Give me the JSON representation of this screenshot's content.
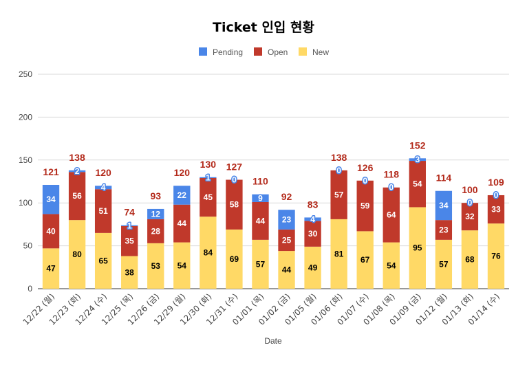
{
  "chart_data": {
    "type": "bar",
    "stacked": true,
    "title": "Ticket 인입 현황",
    "xlabel": "Date",
    "ylabel": "",
    "ylim": [
      0,
      250
    ],
    "yticks": [
      0,
      50,
      100,
      150,
      200,
      250
    ],
    "grid": true,
    "legend_position": "top",
    "categories": [
      "12/22 (월)",
      "12/23 (화)",
      "12/24 (수)",
      "12/25 (목)",
      "12/26 (금)",
      "12/29 (월)",
      "12/30 (화)",
      "12/31 (수)",
      "01/01 (목)",
      "01/02 (금)",
      "01/05 (월)",
      "01/06 (화)",
      "01/07 (수)",
      "01/08 (목)",
      "01/09 (금)",
      "01/12 (월)",
      "01/13 (화)",
      "01/14 (수)"
    ],
    "series": [
      {
        "name": "New",
        "color": "#ffd966",
        "label_color": "#000000",
        "values": [
          47,
          80,
          65,
          38,
          53,
          54,
          84,
          69,
          57,
          44,
          49,
          81,
          67,
          54,
          95,
          57,
          68,
          76
        ]
      },
      {
        "name": "Open",
        "color": "#c0392b",
        "label_color": "#ffffff",
        "values": [
          40,
          56,
          51,
          35,
          28,
          44,
          45,
          58,
          44,
          25,
          30,
          57,
          59,
          64,
          54,
          23,
          32,
          33
        ]
      },
      {
        "name": "Pending",
        "color": "#4a86e8",
        "label_color": "#ffffff",
        "values": [
          34,
          2,
          4,
          1,
          12,
          22,
          1,
          0,
          9,
          23,
          4,
          0,
          0,
          0,
          3,
          34,
          0,
          0
        ]
      }
    ],
    "legend_order": [
      "Pending",
      "Open",
      "New"
    ],
    "totals": [
      121,
      138,
      120,
      74,
      93,
      120,
      130,
      127,
      110,
      92,
      83,
      138,
      126,
      118,
      152,
      114,
      100,
      109
    ],
    "total_label_color": "#b3291a"
  }
}
